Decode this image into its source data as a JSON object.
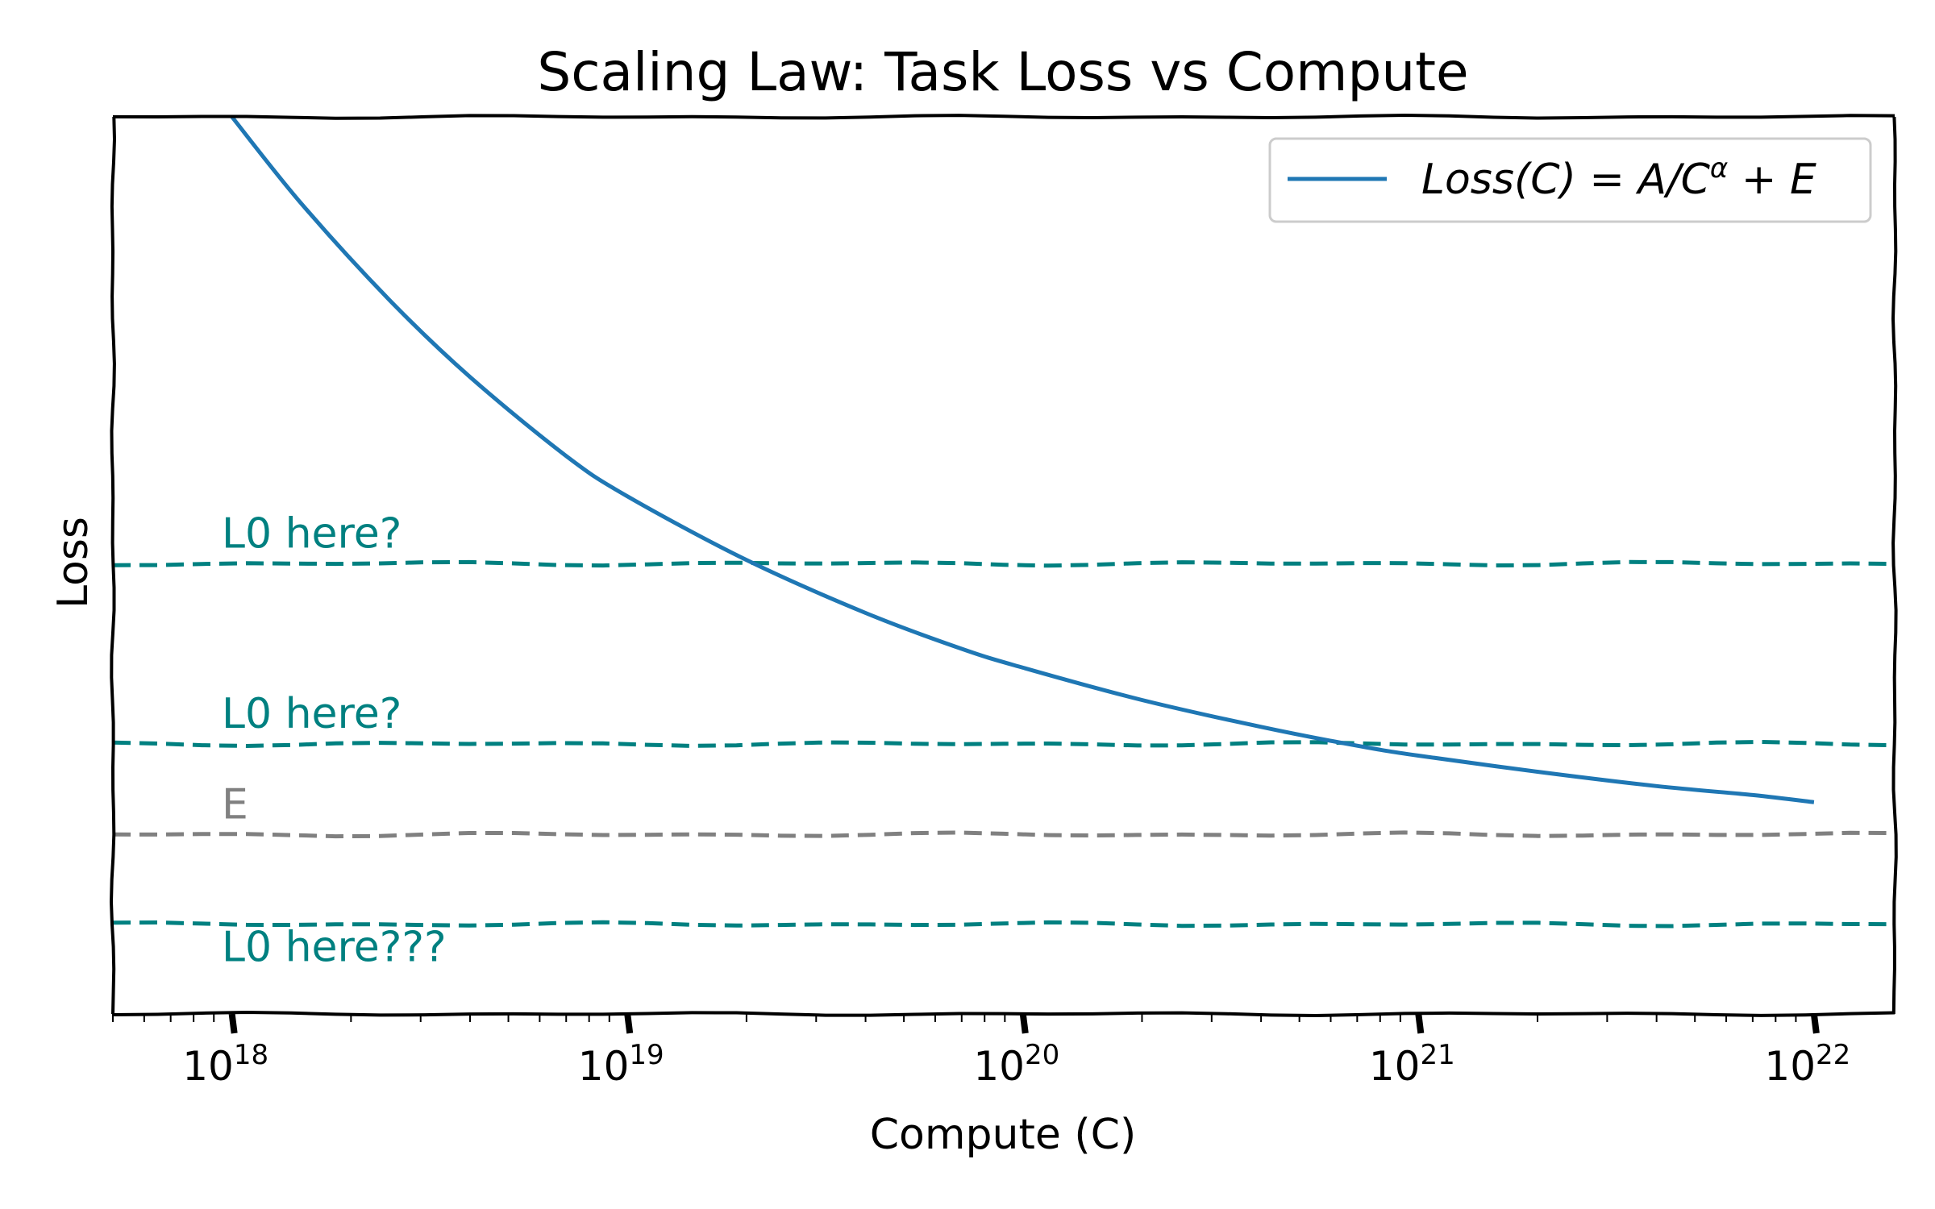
{
  "chart_data": {
    "type": "line",
    "title": "Scaling Law: Task Loss vs Compute",
    "xlabel": "Compute (C)",
    "ylabel": "Loss",
    "xscale": "log",
    "xlim": [
      5e+17,
      1.6e+22
    ],
    "ylim": [
      0,
      1
    ],
    "yticks_shown": false,
    "x_ticks": [
      {
        "value": 1e+18,
        "base": "10",
        "exp": "18"
      },
      {
        "value": 1e+19,
        "base": "10",
        "exp": "19"
      },
      {
        "value": 1e+20,
        "base": "10",
        "exp": "20"
      },
      {
        "value": 1e+21,
        "base": "10",
        "exp": "21"
      },
      {
        "value": 1e+22,
        "base": "10",
        "exp": "22"
      }
    ],
    "series": [
      {
        "name": "Loss(C) = A/C^α + E",
        "legend_parts": [
          "Loss(C)",
          "=",
          "A/C",
          "α",
          "+",
          "E"
        ],
        "color": "#1f77b4",
        "x": [
          1e+18,
          1.5e+18,
          2.5e+18,
          4e+18,
          7e+18,
          1e+19,
          2e+19,
          4e+19,
          7e+19,
          1e+20,
          2e+20,
          4e+20,
          7e+20,
          1e+21,
          2e+21,
          4e+21,
          7e+21,
          1e+22
        ],
        "y": [
          1.0,
          0.903,
          0.796,
          0.71,
          0.622,
          0.577,
          0.506,
          0.447,
          0.407,
          0.386,
          0.35,
          0.32,
          0.299,
          0.288,
          0.27,
          0.254,
          0.244,
          0.236
        ]
      }
    ],
    "reference_lines": [
      {
        "label": "L0 here?",
        "y": 0.502,
        "color": "#008080",
        "label_pos": "above"
      },
      {
        "label": "L0 here?",
        "y": 0.301,
        "color": "#008080",
        "label_pos": "above"
      },
      {
        "label": "E",
        "y": 0.2,
        "color": "#808080",
        "label_pos": "above"
      },
      {
        "label": "L0 here???",
        "y": 0.1,
        "color": "#008080",
        "label_pos": "below"
      }
    ],
    "legend_position": "top-right",
    "style": "xkcd"
  }
}
